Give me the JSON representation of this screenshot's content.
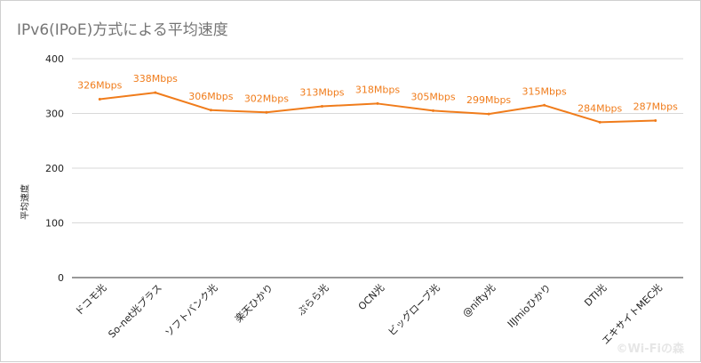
{
  "chart_data": {
    "type": "line",
    "title": "IPv6(IPoE)方式による平均速度",
    "ylabel": "平均速度",
    "xlabel": "",
    "ylim": [
      0,
      400
    ],
    "yticks": [
      0,
      100,
      200,
      300,
      400
    ],
    "grid": true,
    "legend": "none",
    "categories": [
      "ドコモ光",
      "So-net光プラス",
      "ソフトバンク光",
      "楽天ひかり",
      "ぷらら光",
      "OCN光",
      "ビッグローブ光",
      "@nifty光",
      "IIJmioひかり",
      "DTI光",
      "エキサイトMEC光"
    ],
    "series": [
      {
        "values": [
          326,
          338,
          306,
          302,
          313,
          318,
          305,
          299,
          315,
          284,
          287
        ],
        "data_labels": [
          "326Mbps",
          "338Mbps",
          "306Mbps",
          "302Mbps",
          "313Mbps",
          "318Mbps",
          "305Mbps",
          "299Mbps",
          "315Mbps",
          "284Mbps",
          "287Mbps"
        ]
      }
    ],
    "colors": {
      "line": "#f07c1b",
      "label": "#f07c1b",
      "grid": "#d9d9d9",
      "axis_text": "#222222"
    }
  },
  "watermark": "©Wi-Fiの森"
}
